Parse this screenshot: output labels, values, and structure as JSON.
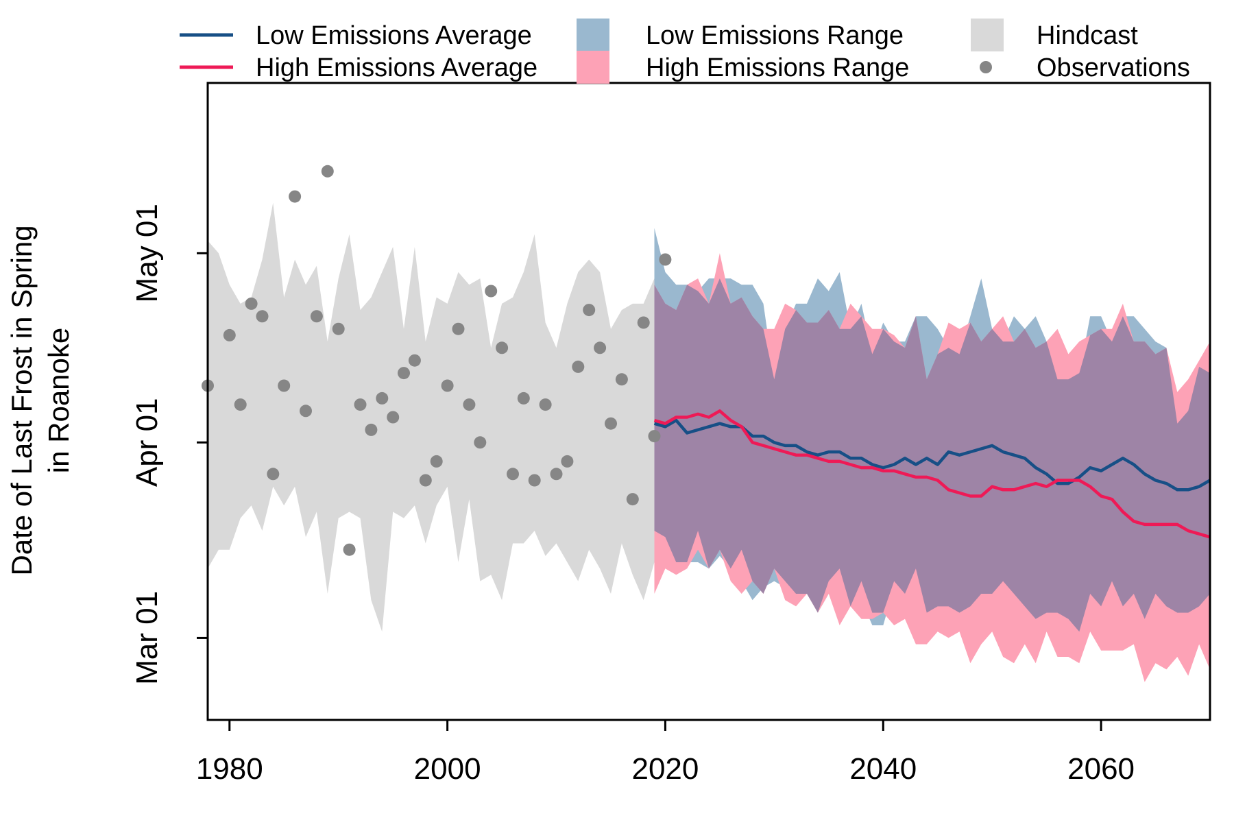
{
  "chart_data": {
    "type": "line",
    "title": "",
    "ylabel": [
      "Date of Last Frost in Spring",
      "in Roanoke"
    ],
    "xlabel": "",
    "xlim": [
      1978,
      2070
    ],
    "ylim": [
      -72,
      29
    ],
    "x_ticks": [
      1980,
      2000,
      2020,
      2040,
      2060
    ],
    "x_tick_labels": [
      "1980",
      "2000",
      "2020",
      "2040",
      "2060"
    ],
    "y_ticks": [
      -59,
      -28,
      2
    ],
    "y_tick_labels": [
      "Mar 01",
      "Apr 01",
      "May 01"
    ],
    "y_units": "day of year offset relative to Apr 01",
    "legend": [
      {
        "label": "Low Emissions Average",
        "kind": "line",
        "color": "#174f86"
      },
      {
        "label": "High Emissions Average",
        "kind": "line",
        "color": "#ee1a56"
      },
      {
        "label": "Low Emissions Range",
        "kind": "box",
        "color": "#9ab8cf"
      },
      {
        "label": "High Emissions Range",
        "kind": "box",
        "color": "#fda2b6"
      },
      {
        "label": "Hindcast",
        "kind": "box",
        "color": "#d9d9d9"
      },
      {
        "label": "Observations",
        "kind": "point",
        "color": "#868686"
      }
    ],
    "colors": {
      "low_avg": "#174f86",
      "high_avg": "#ee1a56",
      "low_range": "#9ab8cf",
      "high_range": "#fda2b6",
      "overlap": "#9e84a6",
      "hindcast": "#d9d9d9",
      "observations": "#868686"
    },
    "hindcast": {
      "x": [
        1978,
        1979,
        1980,
        1981,
        1982,
        1983,
        1984,
        1985,
        1986,
        1987,
        1988,
        1989,
        1990,
        1991,
        1992,
        1993,
        1994,
        1995,
        1996,
        1997,
        1998,
        1999,
        2000,
        2001,
        2002,
        2003,
        2004,
        2005,
        2006,
        2007,
        2008,
        2009,
        2010,
        2011,
        2012,
        2013,
        2014,
        2015,
        2016,
        2017,
        2018,
        2019
      ],
      "upper": [
        4,
        2,
        -3,
        -6,
        -5,
        1,
        10,
        -5,
        1,
        -3,
        0,
        -12,
        -2,
        5,
        -7,
        -5,
        -1,
        3,
        -10,
        3,
        -12,
        -5,
        -6,
        -1,
        -3,
        -2,
        -13,
        -6,
        -5,
        -1,
        5,
        -9,
        -13,
        -6,
        -1,
        1,
        -1,
        -10,
        -7,
        -6,
        -6,
        -2
      ],
      "lower": [
        -48,
        -45,
        -45,
        -40,
        -38,
        -42,
        -35,
        -38,
        -35,
        -43,
        -39,
        -52,
        -40,
        -39,
        -40,
        -53,
        -58,
        -39,
        -40,
        -38,
        -44,
        -38,
        -35,
        -47,
        -37,
        -50,
        -49,
        -53,
        -44,
        -44,
        -42,
        -46,
        -44,
        -47,
        -50,
        -45,
        -48,
        -52,
        -44,
        -49,
        -53,
        -47
      ]
    },
    "observations": {
      "x": [
        1978,
        1980,
        1981,
        1982,
        1983,
        1984,
        1985,
        1986,
        1987,
        1988,
        1989,
        1990,
        1991,
        1992,
        1993,
        1994,
        1995,
        1996,
        1997,
        1998,
        1999,
        2000,
        2001,
        2002,
        2003,
        2004,
        2005,
        2006,
        2007,
        2008,
        2009,
        2010,
        2011,
        2012,
        2013,
        2014,
        2015,
        2016,
        2017,
        2018,
        2019,
        2020
      ],
      "y": [
        -19,
        -11,
        -22,
        -6,
        -8,
        -33,
        -19,
        11,
        -23,
        -8,
        15,
        -10,
        -45,
        -22,
        -26,
        -21,
        -24,
        -17,
        -15,
        -34,
        -31,
        -19,
        -10,
        -22,
        -28,
        -4,
        -13,
        -33,
        -21,
        -34,
        -22,
        -33,
        -31,
        -16,
        -7,
        -13,
        -25,
        -18,
        -37,
        -9,
        -27,
        1
      ]
    },
    "low_emissions": {
      "x": [
        2019,
        2020,
        2021,
        2022,
        2023,
        2024,
        2025,
        2026,
        2027,
        2028,
        2029,
        2030,
        2031,
        2032,
        2033,
        2034,
        2035,
        2036,
        2037,
        2038,
        2039,
        2040,
        2041,
        2042,
        2043,
        2044,
        2045,
        2046,
        2047,
        2048,
        2049,
        2050,
        2051,
        2052,
        2053,
        2054,
        2055,
        2056,
        2057,
        2058,
        2059,
        2060,
        2061,
        2062,
        2063,
        2064,
        2065,
        2066,
        2067,
        2068,
        2069,
        2070
      ],
      "average": [
        -25,
        -25.5,
        -24.5,
        -26.5,
        -26,
        -25.5,
        -25,
        -25.5,
        -25.5,
        -27,
        -27,
        -28,
        -28.5,
        -28.5,
        -29.5,
        -30,
        -29.5,
        -29.5,
        -30.5,
        -30.5,
        -31.5,
        -32,
        -31.5,
        -30.5,
        -31.5,
        -30.5,
        -31.5,
        -29.5,
        -30,
        -29.5,
        -29,
        -28.5,
        -29.5,
        -30,
        -30.5,
        -32,
        -33,
        -34.5,
        -34.5,
        -33.5,
        -32,
        -32.5,
        -31.5,
        -30.5,
        -31.5,
        -33,
        -34,
        -34.5,
        -35.5,
        -35.5,
        -35,
        -34
      ],
      "upper": [
        5,
        -1,
        -8,
        -8,
        -7,
        -3,
        -5,
        -7,
        -10,
        -2,
        -2,
        -18,
        -6,
        -6,
        -2,
        -10,
        -4,
        -5,
        -9,
        -12,
        -13,
        -10,
        -6,
        -6,
        -6,
        -15,
        -12,
        -7,
        -9,
        -6,
        -6,
        -2,
        -9,
        -6,
        -6,
        -8,
        -8,
        -16,
        -16,
        -12,
        -12,
        -12,
        -6,
        -10,
        -10,
        -6,
        -8,
        -10,
        -22,
        -20,
        -14,
        -12
      ]
    },
    "high_emissions": {
      "x": [
        2019,
        2020,
        2021,
        2022,
        2023,
        2024,
        2025,
        2026,
        2027,
        2028,
        2029,
        2030,
        2031,
        2032,
        2033,
        2034,
        2035,
        2036,
        2037,
        2038,
        2039,
        2040,
        2041,
        2042,
        2043,
        2044,
        2045,
        2046,
        2047,
        2048,
        2049,
        2050,
        2051,
        2052,
        2053,
        2054,
        2055,
        2056,
        2057,
        2058,
        2059,
        2060,
        2061,
        2062,
        2063,
        2064,
        2065,
        2066,
        2067,
        2068,
        2069,
        2070
      ],
      "average": [
        -24.5,
        -25,
        -24,
        -24,
        -23.5,
        -24,
        -23,
        -24.5,
        -25.5,
        -28,
        -28.5,
        -29,
        -29.5,
        -30,
        -30,
        -30.5,
        -31,
        -31,
        -31.5,
        -32,
        -32,
        -32.5,
        -32.5,
        -33,
        -33.5,
        -33.5,
        -34,
        -35.5,
        -36,
        -36.5,
        -36.5,
        -35,
        -35.5,
        -35.5,
        -35,
        -34.5,
        -35,
        -34,
        -34,
        -34,
        -35,
        -36.5,
        -37,
        -39,
        -40.5,
        -41,
        -41,
        -41,
        -41,
        -42,
        -42.5,
        -43
      ]
    },
    "low_range": {
      "x": [
        2019,
        2020,
        2021,
        2022,
        2023,
        2024,
        2025,
        2026,
        2027,
        2028,
        2029,
        2030,
        2031,
        2032,
        2033,
        2034,
        2035,
        2036,
        2037,
        2038,
        2039,
        2040,
        2041,
        2042,
        2043,
        2044,
        2045,
        2046,
        2047,
        2048,
        2049,
        2050,
        2051,
        2052,
        2053,
        2054,
        2055,
        2056,
        2057,
        2058,
        2059,
        2060,
        2061,
        2062,
        2063,
        2064,
        2065,
        2066,
        2067,
        2068,
        2069,
        2070
      ],
      "upper": [
        6,
        -1,
        -3,
        -3,
        -4,
        -2,
        -2,
        -2,
        -3,
        -3,
        -6,
        -18,
        -10,
        -6,
        -6,
        -2,
        -4,
        -1,
        -10,
        -6,
        -14,
        -9,
        -12,
        -12,
        -8,
        -8,
        -10,
        -13,
        -14,
        -8,
        -2,
        -10,
        -12,
        -8,
        -10,
        -8,
        -12,
        -18,
        -18,
        -17,
        -8,
        -8,
        -12,
        -8,
        -8,
        -10,
        -12,
        -13,
        -25,
        -23,
        -16,
        -17
      ],
      "lower": [
        -42,
        -43,
        -47,
        -47,
        -42,
        -48,
        -46,
        -48,
        -45,
        -50,
        -52,
        -48,
        -50,
        -52,
        -55,
        -56,
        -50,
        -48,
        -54,
        -50,
        -55,
        -55,
        -50,
        -52,
        -48,
        -55,
        -54,
        -54,
        -55,
        -54,
        -52,
        -52,
        -50,
        -52,
        -54,
        -56,
        -55,
        -55,
        -56,
        -58,
        -52,
        -54,
        -50,
        -54,
        -52,
        -56,
        -52,
        -54,
        -55,
        -55,
        -54,
        -52
      ],
      "lower_min": [
        -46,
        -43,
        -47,
        -47,
        -47,
        -48,
        -46,
        -48,
        -50,
        -53,
        -51,
        -50,
        -51,
        -50,
        -51,
        -55,
        -52,
        -51,
        -54,
        -53,
        -57,
        -57,
        -51,
        -53,
        -51,
        -55,
        -54,
        -56,
        -55,
        -55,
        -53,
        -56,
        -52,
        -52,
        -55,
        -57,
        -56,
        -58,
        -56,
        -60,
        -55,
        -56,
        -52,
        -56,
        -55,
        -57,
        -54,
        -57,
        -56,
        -55,
        -56,
        -54
      ]
    },
    "high_range": {
      "x": [
        2019,
        2020,
        2021,
        2022,
        2023,
        2024,
        2025,
        2026,
        2027,
        2028,
        2029,
        2030,
        2031,
        2032,
        2033,
        2034,
        2035,
        2036,
        2037,
        2038,
        2039,
        2040,
        2041,
        2042,
        2043,
        2044,
        2045,
        2046,
        2047,
        2048,
        2049,
        2050,
        2051,
        2052,
        2053,
        2054,
        2055,
        2056,
        2057,
        2058,
        2059,
        2060,
        2061,
        2062,
        2063,
        2064,
        2065,
        2066,
        2067,
        2068,
        2069,
        2070
      ],
      "upper": [
        -3,
        -6,
        -7,
        -3,
        -2,
        -6,
        2,
        -6,
        -5,
        -8,
        -10,
        -10,
        -6,
        -7,
        -9,
        -9,
        -7,
        -10,
        -6,
        -8,
        -10,
        -10,
        -11,
        -13,
        -8,
        -18,
        -14,
        -9,
        -10,
        -9,
        -12,
        -10,
        -8,
        -12,
        -10,
        -13,
        -12,
        -10,
        -14,
        -12,
        -11,
        -10,
        -10,
        -6,
        -12,
        -12,
        -14,
        -13,
        -20,
        -18,
        -15,
        -12
      ],
      "lower": [
        -52,
        -48,
        -49,
        -48,
        -45,
        -48,
        -45,
        -50,
        -52,
        -50,
        -52,
        -48,
        -53,
        -54,
        -52,
        -55,
        -52,
        -57,
        -54,
        -56,
        -56,
        -55,
        -57,
        -56,
        -60,
        -60,
        -58,
        -59,
        -58,
        -63,
        -60,
        -58,
        -62,
        -63,
        -60,
        -63,
        -58,
        -62,
        -62,
        -63,
        -58,
        -61,
        -61,
        -61,
        -60,
        -66,
        -63,
        -64,
        -62,
        -65,
        -60,
        -64
      ]
    }
  }
}
